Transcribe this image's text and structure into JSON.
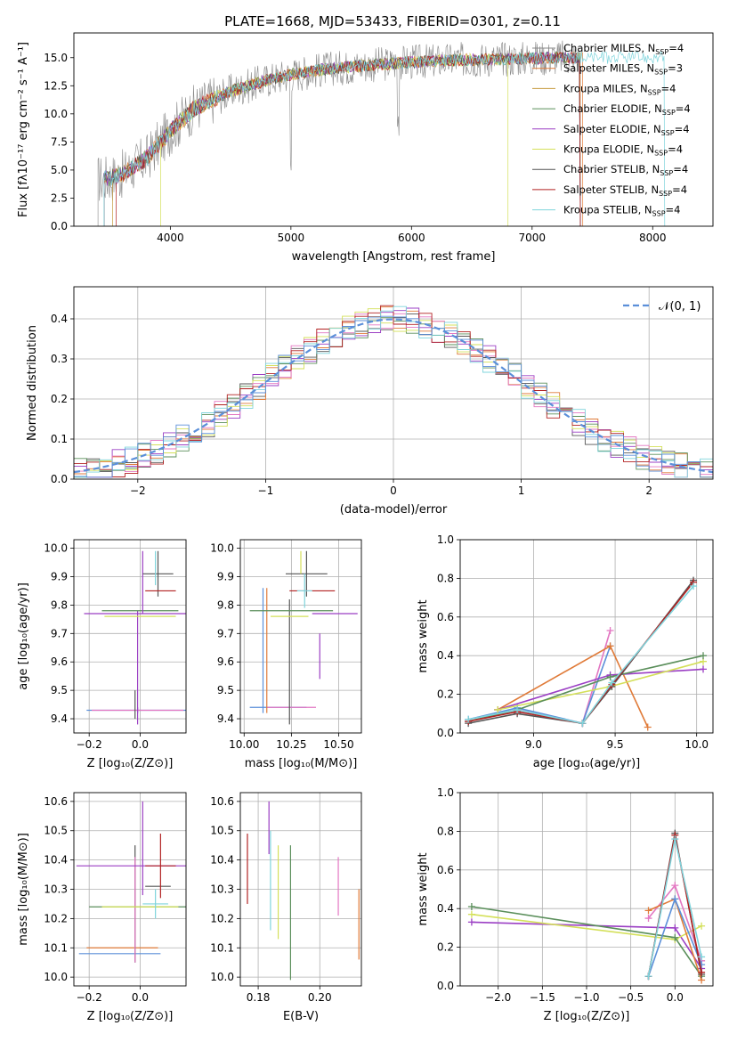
{
  "figure_title": "PLATE=1668, MJD=53433, FIBERID=0301, z=0.11",
  "colors": [
    "#888888",
    "#e07b39",
    "#c49a3c",
    "#5b8f5b",
    "#9b3fc4",
    "#d4e05a",
    "#555555",
    "#b22222",
    "#7fd4dc"
  ],
  "chart_data": [
    {
      "id": "spectrum",
      "type": "line",
      "title": "PLATE=1668, MJD=53433, FIBERID=0301, z=0.11",
      "xlabel": "wavelength [Angstrom, rest frame]",
      "ylabel": "Flux [fλ10⁻¹⁷ erg cm⁻² s⁻¹ A⁻¹]",
      "xlim": [
        3200,
        8500
      ],
      "ylim": [
        0,
        17.2
      ],
      "xticks": [
        4000,
        5000,
        6000,
        7000,
        8000
      ],
      "yticks": [
        "0.0",
        "2.5",
        "5.0",
        "7.5",
        "10.0",
        "12.5",
        "15.0"
      ],
      "legend_position": "top-right",
      "continuum": {
        "x": [
          3450,
          3600,
          3800,
          4000,
          4200,
          4500,
          4800,
          5000,
          5300,
          5600,
          6000,
          6400,
          6800,
          7200,
          7400
        ],
        "y": [
          4.2,
          4.6,
          6.0,
          8.5,
          10.5,
          12.0,
          13.0,
          13.5,
          14.0,
          14.3,
          14.6,
          14.8,
          14.9,
          15.0,
          15.0
        ]
      },
      "series": [
        {
          "name": "Chabrier MILES, N_SSP=4",
          "label": "Chabrier MILES, N",
          "sub": "SSP",
          "tail": "=4",
          "color": "#888888"
        },
        {
          "name": "Salpeter MILES, N_SSP=3",
          "label": "Salpeter MILES, N",
          "sub": "SSP",
          "tail": "=3",
          "color": "#e07b39"
        },
        {
          "name": "Kroupa MILES, N_SSP=4",
          "label": "Kroupa MILES, N",
          "sub": "SSP",
          "tail": "=4",
          "color": "#c49a3c"
        },
        {
          "name": "Chabrier ELODIE, N_SSP=4",
          "label": "Chabrier ELODIE, N",
          "sub": "SSP",
          "tail": "=4",
          "color": "#5b8f5b"
        },
        {
          "name": "Salpeter ELODIE, N_SSP=4",
          "label": "Salpeter ELODIE, N",
          "sub": "SSP",
          "tail": "=4",
          "color": "#9b3fc4"
        },
        {
          "name": "Kroupa ELODIE, N_SSP=4",
          "label": "Kroupa ELODIE, N",
          "sub": "SSP",
          "tail": "=4",
          "color": "#d4e05a"
        },
        {
          "name": "Chabrier STELIB, N_SSP=4",
          "label": "Chabrier STELIB, N",
          "sub": "SSP",
          "tail": "=4",
          "color": "#555555"
        },
        {
          "name": "Salpeter STELIB, N_SSP=4",
          "label": "Salpeter STELIB, N",
          "sub": "SSP",
          "tail": "=4",
          "color": "#b22222"
        },
        {
          "name": "Kroupa STELIB, N_SSP=4",
          "label": "Kroupa STELIB, N",
          "sub": "SSP",
          "tail": "=4",
          "color": "#7fd4dc"
        }
      ]
    },
    {
      "id": "residuals",
      "type": "line",
      "xlabel": "(data-model)/error",
      "ylabel": "Normed distribution",
      "xlim": [
        -2.5,
        2.5
      ],
      "ylim": [
        0,
        0.48
      ],
      "xticks": [
        "−2",
        "−1",
        "0",
        "1",
        "2"
      ],
      "yticks": [
        "0.0",
        "0.1",
        "0.2",
        "0.3",
        "0.4"
      ],
      "grid": true,
      "legend_position": "top-right",
      "legend": "𝒩(0, 1)",
      "gaussian_color": "#5b8fd9"
    },
    {
      "id": "age_vs_Z",
      "type": "scatter",
      "xlabel": "Z [log₁₀(Z/Z⊙)]",
      "ylabel": "age  [log₁₀(age/yr)]",
      "xlim": [
        -0.26,
        0.18
      ],
      "ylim": [
        9.35,
        10.03
      ],
      "xticks": [
        "−0.2",
        "0.0"
      ],
      "yticks": [
        "9.4",
        "9.5",
        "9.6",
        "9.7",
        "9.8",
        "9.9",
        "10.0"
      ],
      "grid": true,
      "points": [
        {
          "x": -0.01,
          "y": 9.43,
          "xerr": 0.2,
          "yerr": 0.01,
          "color": "#5b8fd9"
        },
        {
          "x": -0.01,
          "y": 9.43,
          "xerr": 0.18,
          "yerr": 0.01,
          "color": "#e377c2"
        },
        {
          "x": -0.01,
          "y": 9.58,
          "xerr": 0.0,
          "yerr": 0.2,
          "color": "#9b3fc4"
        },
        {
          "x": -0.02,
          "y": 9.45,
          "xerr": 0.0,
          "yerr": 0.05,
          "color": "#555555"
        },
        {
          "x": 0.0,
          "y": 9.78,
          "xerr": 0.15,
          "yerr": 0.0,
          "color": "#5b8f5b"
        },
        {
          "x": 0.0,
          "y": 9.77,
          "xerr": 0.22,
          "yerr": 0.0,
          "color": "#9b3fc4"
        },
        {
          "x": 0.0,
          "y": 9.76,
          "xerr": 0.14,
          "yerr": 0.0,
          "color": "#d4e05a"
        },
        {
          "x": 0.01,
          "y": 9.88,
          "xerr": 0.0,
          "yerr": 0.11,
          "color": "#9b3fc4"
        },
        {
          "x": 0.07,
          "y": 9.91,
          "xerr": 0.06,
          "yerr": 0.08,
          "color": "#555555"
        },
        {
          "x": 0.08,
          "y": 9.85,
          "xerr": 0.06,
          "yerr": 0.0,
          "color": "#b22222"
        },
        {
          "x": 0.06,
          "y": 9.93,
          "xerr": 0.0,
          "yerr": 0.06,
          "color": "#7fd4dc"
        }
      ]
    },
    {
      "id": "age_vs_mass",
      "type": "scatter",
      "xlabel": "mass [log₁₀(M/M⊙)]",
      "ylabel": "",
      "xlim": [
        9.98,
        10.62
      ],
      "ylim": [
        9.35,
        10.03
      ],
      "xticks": [
        "10.00",
        "10.25",
        "10.50"
      ],
      "yticks": [
        "9.4",
        "9.5",
        "9.6",
        "9.7",
        "9.8",
        "9.9",
        "10.0"
      ],
      "grid": true,
      "points": [
        {
          "x": 10.18,
          "y": 9.44,
          "xerr": 0.15,
          "yerr": 0.0,
          "color": "#5b8fd9"
        },
        {
          "x": 10.25,
          "y": 9.44,
          "xerr": 0.13,
          "yerr": 0.0,
          "color": "#e377c2"
        },
        {
          "x": 10.1,
          "y": 9.64,
          "xerr": 0.0,
          "yerr": 0.22,
          "color": "#5b8fd9"
        },
        {
          "x": 10.12,
          "y": 9.64,
          "xerr": 0.0,
          "yerr": 0.22,
          "color": "#e07b39"
        },
        {
          "x": 10.24,
          "y": 9.6,
          "xerr": 0.0,
          "yerr": 0.22,
          "color": "#555555"
        },
        {
          "x": 10.25,
          "y": 9.78,
          "xerr": 0.22,
          "yerr": 0.0,
          "color": "#5b8f5b"
        },
        {
          "x": 10.48,
          "y": 9.77,
          "xerr": 0.12,
          "yerr": 0.0,
          "color": "#9b3fc4"
        },
        {
          "x": 10.24,
          "y": 9.76,
          "xerr": 0.1,
          "yerr": 0.0,
          "color": "#d4e05a"
        },
        {
          "x": 10.4,
          "y": 9.62,
          "xerr": 0.0,
          "yerr": 0.08,
          "color": "#9b3fc4"
        },
        {
          "x": 10.33,
          "y": 9.91,
          "xerr": 0.11,
          "yerr": 0.08,
          "color": "#555555"
        },
        {
          "x": 10.36,
          "y": 9.85,
          "xerr": 0.12,
          "yerr": 0.0,
          "color": "#b22222"
        },
        {
          "x": 10.32,
          "y": 9.85,
          "xerr": 0.04,
          "yerr": 0.06,
          "color": "#7fd4dc"
        },
        {
          "x": 10.3,
          "y": 9.95,
          "xerr": 0.0,
          "yerr": 0.04,
          "color": "#d4e05a"
        }
      ]
    },
    {
      "id": "weight_vs_age",
      "type": "line",
      "xlabel": "age  [log₁₀(age/yr)]",
      "ylabel": "mass weight",
      "xlim": [
        8.55,
        10.1
      ],
      "ylim": [
        0,
        1.0
      ],
      "xticks": [
        "9.0",
        "9.5",
        "10.0"
      ],
      "yticks": [
        "0.0",
        "0.2",
        "0.4",
        "0.6",
        "0.8",
        "1.0"
      ],
      "grid": true,
      "series": [
        {
          "color": "#e377c2",
          "x": [
            8.6,
            8.9,
            9.3,
            9.47
          ],
          "y": [
            0.06,
            0.12,
            0.05,
            0.53
          ]
        },
        {
          "color": "#5b8fd9",
          "x": [
            8.6,
            8.9,
            9.3,
            9.47
          ],
          "y": [
            0.07,
            0.13,
            0.05,
            0.45
          ]
        },
        {
          "color": "#e07b39",
          "x": [
            8.78,
            9.47,
            9.7
          ],
          "y": [
            0.12,
            0.45,
            0.03
          ]
        },
        {
          "color": "#9b3fc4",
          "x": [
            8.78,
            9.47,
            10.04
          ],
          "y": [
            0.12,
            0.3,
            0.33
          ]
        },
        {
          "color": "#d4e05a",
          "x": [
            8.78,
            9.47,
            10.04
          ],
          "y": [
            0.12,
            0.24,
            0.37
          ]
        },
        {
          "color": "#5b8f5b",
          "x": [
            8.6,
            8.9,
            9.47,
            10.04
          ],
          "y": [
            0.06,
            0.12,
            0.29,
            0.4
          ]
        },
        {
          "color": "#555555",
          "x": [
            8.6,
            8.9,
            9.3,
            9.48,
            9.98
          ],
          "y": [
            0.05,
            0.1,
            0.05,
            0.24,
            0.79
          ]
        },
        {
          "color": "#b22222",
          "x": [
            8.6,
            8.9,
            9.3,
            9.48,
            9.98
          ],
          "y": [
            0.06,
            0.11,
            0.05,
            0.25,
            0.78
          ]
        },
        {
          "color": "#7fd4dc",
          "x": [
            8.6,
            8.9,
            9.3,
            9.48,
            9.98
          ],
          "y": [
            0.07,
            0.12,
            0.05,
            0.26,
            0.76
          ]
        }
      ]
    },
    {
      "id": "mass_vs_Z",
      "type": "scatter",
      "xlabel": "Z [log₁₀(Z/Z⊙)]",
      "ylabel": "mass [log₁₀(M/M⊙)]",
      "xlim": [
        -0.26,
        0.18
      ],
      "ylim": [
        9.97,
        10.63
      ],
      "xticks": [
        "−0.2",
        "0.0"
      ],
      "yticks": [
        "10.0",
        "10.1",
        "10.2",
        "10.3",
        "10.4",
        "10.5",
        "10.6"
      ],
      "grid": true,
      "points": [
        {
          "x": -0.08,
          "y": 10.08,
          "xerr": 0.16,
          "yerr": 0.0,
          "color": "#5b8fd9"
        },
        {
          "x": -0.07,
          "y": 10.1,
          "xerr": 0.14,
          "yerr": 0.0,
          "color": "#e07b39"
        },
        {
          "x": -0.02,
          "y": 10.25,
          "xerr": 0.0,
          "yerr": 0.2,
          "color": "#555555"
        },
        {
          "x": -0.02,
          "y": 10.23,
          "xerr": 0.0,
          "yerr": 0.18,
          "color": "#e377c2"
        },
        {
          "x": 0.0,
          "y": 10.24,
          "xerr": 0.2,
          "yerr": 0.0,
          "color": "#5b8f5b"
        },
        {
          "x": 0.0,
          "y": 10.24,
          "xerr": 0.15,
          "yerr": 0.0,
          "color": "#d4e05a"
        },
        {
          "x": -0.01,
          "y": 10.38,
          "xerr": 0.24,
          "yerr": 0.0,
          "color": "#9b3fc4"
        },
        {
          "x": 0.01,
          "y": 10.44,
          "xerr": 0.0,
          "yerr": 0.16,
          "color": "#9b3fc4"
        },
        {
          "x": 0.07,
          "y": 10.31,
          "xerr": 0.05,
          "yerr": 0.0,
          "color": "#555555"
        },
        {
          "x": 0.08,
          "y": 10.38,
          "xerr": 0.06,
          "yerr": 0.11,
          "color": "#b22222"
        },
        {
          "x": 0.06,
          "y": 10.25,
          "xerr": 0.05,
          "yerr": 0.05,
          "color": "#7fd4dc"
        }
      ]
    },
    {
      "id": "mass_vs_ebv",
      "type": "scatter",
      "xlabel": "E(B-V)",
      "ylabel": "",
      "xlim": [
        0.1742,
        0.2135
      ],
      "ylim": [
        9.97,
        10.63
      ],
      "xticks": [
        "0.18",
        "0.20"
      ],
      "yticks": [
        "10.0",
        "10.1",
        "10.2",
        "10.3",
        "10.4",
        "10.5",
        "10.6"
      ],
      "grid": true,
      "points": [
        {
          "x": 0.1765,
          "y": 10.37,
          "yerr": 0.12,
          "color": "#b22222"
        },
        {
          "x": 0.1835,
          "y": 10.51,
          "yerr": 0.09,
          "color": "#9b3fc4"
        },
        {
          "x": 0.184,
          "y": 10.33,
          "yerr": 0.17,
          "color": "#7fd4dc"
        },
        {
          "x": 0.1865,
          "y": 10.29,
          "yerr": 0.16,
          "color": "#d4e05a"
        },
        {
          "x": 0.1905,
          "y": 10.22,
          "yerr": 0.23,
          "color": "#5b8f5b"
        },
        {
          "x": 0.206,
          "y": 10.31,
          "yerr": 0.1,
          "color": "#e377c2"
        },
        {
          "x": 0.2127,
          "y": 10.18,
          "yerr": 0.12,
          "color": "#e07b39"
        }
      ]
    },
    {
      "id": "weight_vs_Z",
      "type": "line",
      "xlabel": "Z [log₁₀(Z/Z⊙)]",
      "ylabel": "mass weight",
      "xlim": [
        -2.43,
        0.43
      ],
      "ylim": [
        0,
        1.0
      ],
      "xticks": [
        "−2.0",
        "−1.5",
        "−1.0",
        "−0.5",
        "0.0"
      ],
      "yticks": [
        "0.0",
        "0.2",
        "0.4",
        "0.6",
        "0.8",
        "1.0"
      ],
      "grid": true,
      "series": [
        {
          "color": "#9b3fc4",
          "x": [
            -2.3,
            0.0,
            0.3
          ],
          "y": [
            0.33,
            0.3,
            0.09
          ]
        },
        {
          "color": "#d4e05a",
          "x": [
            -2.3,
            0.0,
            0.3
          ],
          "y": [
            0.37,
            0.24,
            0.31
          ]
        },
        {
          "color": "#5b8f5b",
          "x": [
            -2.3,
            0.0,
            0.3
          ],
          "y": [
            0.41,
            0.25,
            0.05
          ]
        },
        {
          "color": "#e377c2",
          "x": [
            -0.3,
            0.0,
            0.3
          ],
          "y": [
            0.35,
            0.52,
            0.13
          ]
        },
        {
          "color": "#e07b39",
          "x": [
            -0.3,
            0.0,
            0.3
          ],
          "y": [
            0.39,
            0.45,
            0.03
          ]
        },
        {
          "color": "#5b8fd9",
          "x": [
            -0.3,
            0.0,
            0.3
          ],
          "y": [
            0.05,
            0.45,
            0.11
          ]
        },
        {
          "color": "#555555",
          "x": [
            -0.3,
            0.0,
            0.3
          ],
          "y": [
            0.05,
            0.79,
            0.06
          ]
        },
        {
          "color": "#b22222",
          "x": [
            -0.3,
            0.0,
            0.3
          ],
          "y": [
            0.05,
            0.78,
            0.07
          ]
        },
        {
          "color": "#7fd4dc",
          "x": [
            -0.3,
            0.0,
            0.3
          ],
          "y": [
            0.05,
            0.76,
            0.15
          ]
        }
      ]
    }
  ]
}
